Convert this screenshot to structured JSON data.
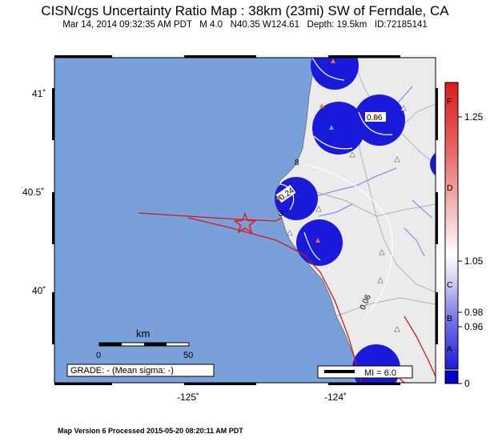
{
  "header": {
    "title": "CISN/cgs Uncertainty Ratio Map : 38km (23mi) SW of Ferndale, CA",
    "subtitle": "Mar 14, 2014 09:32:35 AM PDT   M 4.0   N40.35 W124.61   Depth: 19.5km   ID:72185141"
  },
  "map": {
    "lat_labels": [
      "41˚",
      "40.5˚",
      "40˚"
    ],
    "lon_labels": [
      "-125˚",
      "-124˚"
    ],
    "ocean_color": "#7aa0db",
    "land_color": "#ebebeb",
    "circle_color": "#1a1adc",
    "fault_color": "#cc1a1a",
    "contour_labels": [
      "0.06",
      "0.24",
      "0.06",
      "8",
      "3"
    ],
    "epicenter_icon": "star-icon",
    "station_icon": "triangle-icon"
  },
  "scale_bar": {
    "unit": "km",
    "start": "0",
    "end": "50"
  },
  "grade": {
    "text": "GRADE: - (Mean sigma: -)"
  },
  "mi_legend": {
    "text": "MI = 6.0"
  },
  "colorbar": {
    "values": [
      "1.25",
      "1.05",
      "0.98",
      "0.96",
      "0"
    ],
    "grades": [
      "F",
      "D",
      "C",
      "B",
      "A"
    ]
  },
  "footer": {
    "text": "Map Version 6 Processed 2015-05-20 08:20:11 AM PDT"
  }
}
